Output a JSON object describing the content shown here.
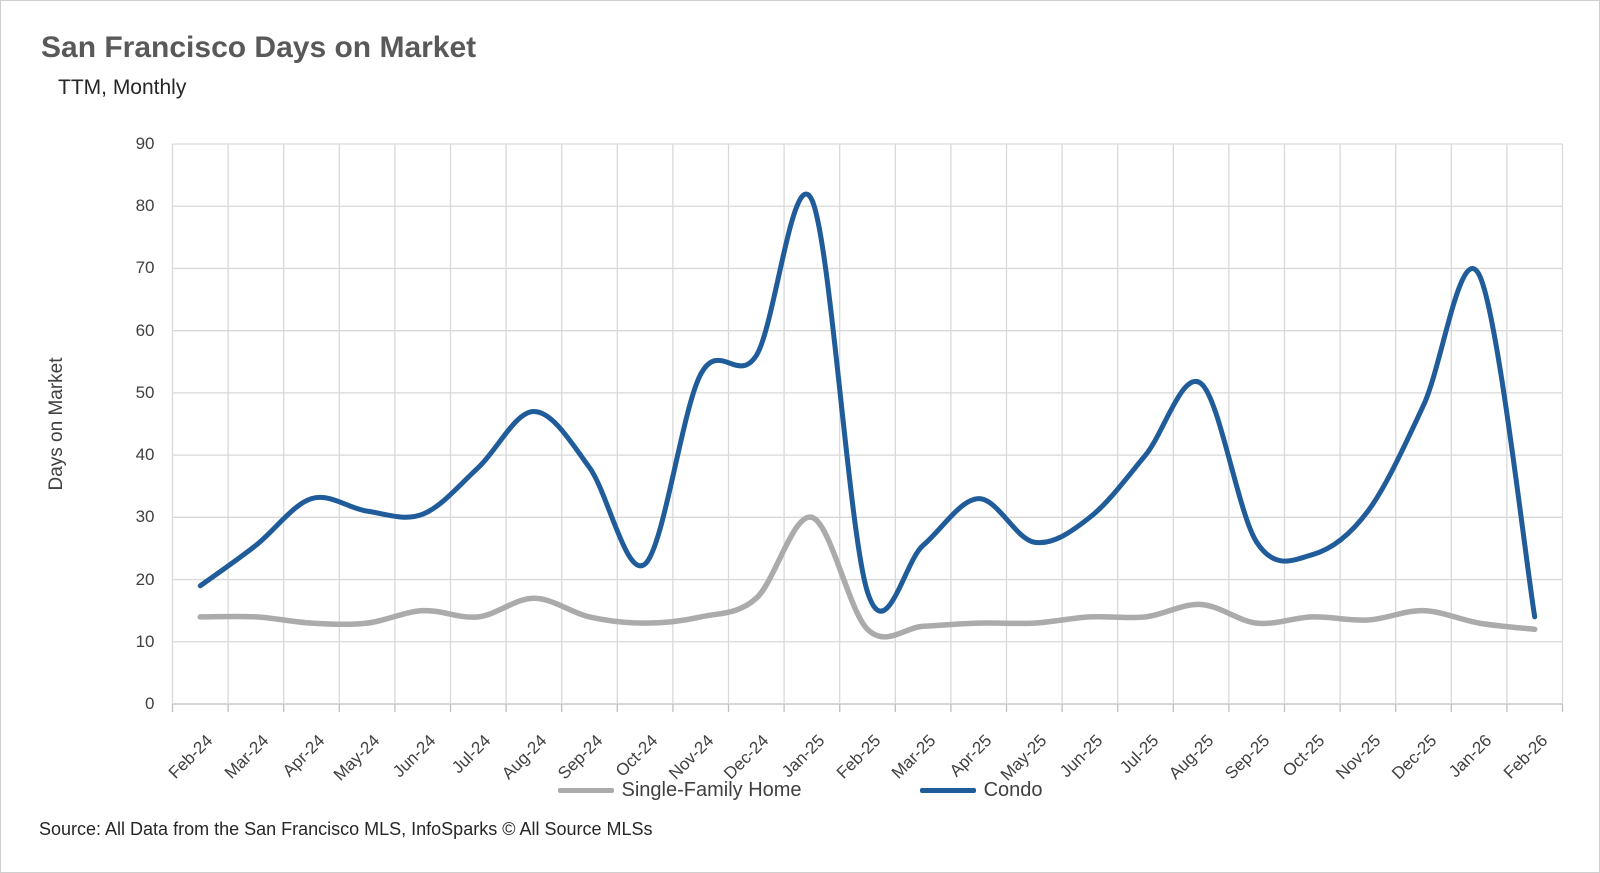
{
  "header": {
    "title": "San Francisco Days on Market",
    "subtitle": "TTM, Monthly"
  },
  "footer": {
    "source": "Source: All Data from the San Francisco MLS, InfoSparks © All Source MLSs"
  },
  "legend": {
    "items": [
      {
        "label": "Single-Family Home",
        "color": "#ABABAB"
      },
      {
        "label": "Condo",
        "color": "#1F5C99"
      }
    ]
  },
  "colors": {
    "grid": "#D9D9D9",
    "axis_line": "#BFBFBF",
    "title_text": "#595959",
    "tick_text": "#404040",
    "single_family": "#ABABAB",
    "condo": "#1F5C99"
  },
  "chart_data": {
    "type": "line",
    "title": "San Francisco Days on Market",
    "subtitle": "TTM, Monthly",
    "xlabel": "",
    "ylabel": "Days on Market",
    "ylim": [
      0,
      90
    ],
    "ytick_step": 10,
    "grid": true,
    "legend_position": "bottom",
    "smoothing": true,
    "categories": [
      "Feb-24",
      "Mar-24",
      "Apr-24",
      "May-24",
      "Jun-24",
      "Jul-24",
      "Aug-24",
      "Sep-24",
      "Oct-24",
      "Nov-24",
      "Dec-24",
      "Jan-25",
      "Feb-25",
      "Mar-25",
      "Apr-25",
      "May-25",
      "Jun-25",
      "Jul-25",
      "Aug-25",
      "Sep-25",
      "Oct-25",
      "Nov-25",
      "Dec-25",
      "Jan-26",
      "Feb-26"
    ],
    "series": [
      {
        "name": "Single-Family Home",
        "color": "#ABABAB",
        "values": [
          14,
          14,
          13,
          13,
          15,
          14,
          17,
          14,
          13,
          14,
          17,
          30,
          12,
          12.5,
          13,
          13,
          14,
          14,
          16,
          13,
          14,
          13.5,
          15,
          13,
          12
        ]
      },
      {
        "name": "Condo",
        "color": "#1F5C99",
        "values": [
          19,
          25.5,
          33,
          31,
          30.5,
          38,
          47,
          38,
          22.5,
          53,
          56,
          81,
          18,
          25.5,
          33,
          26,
          30,
          40,
          51.5,
          26,
          24,
          31,
          48,
          69,
          14
        ]
      }
    ]
  }
}
